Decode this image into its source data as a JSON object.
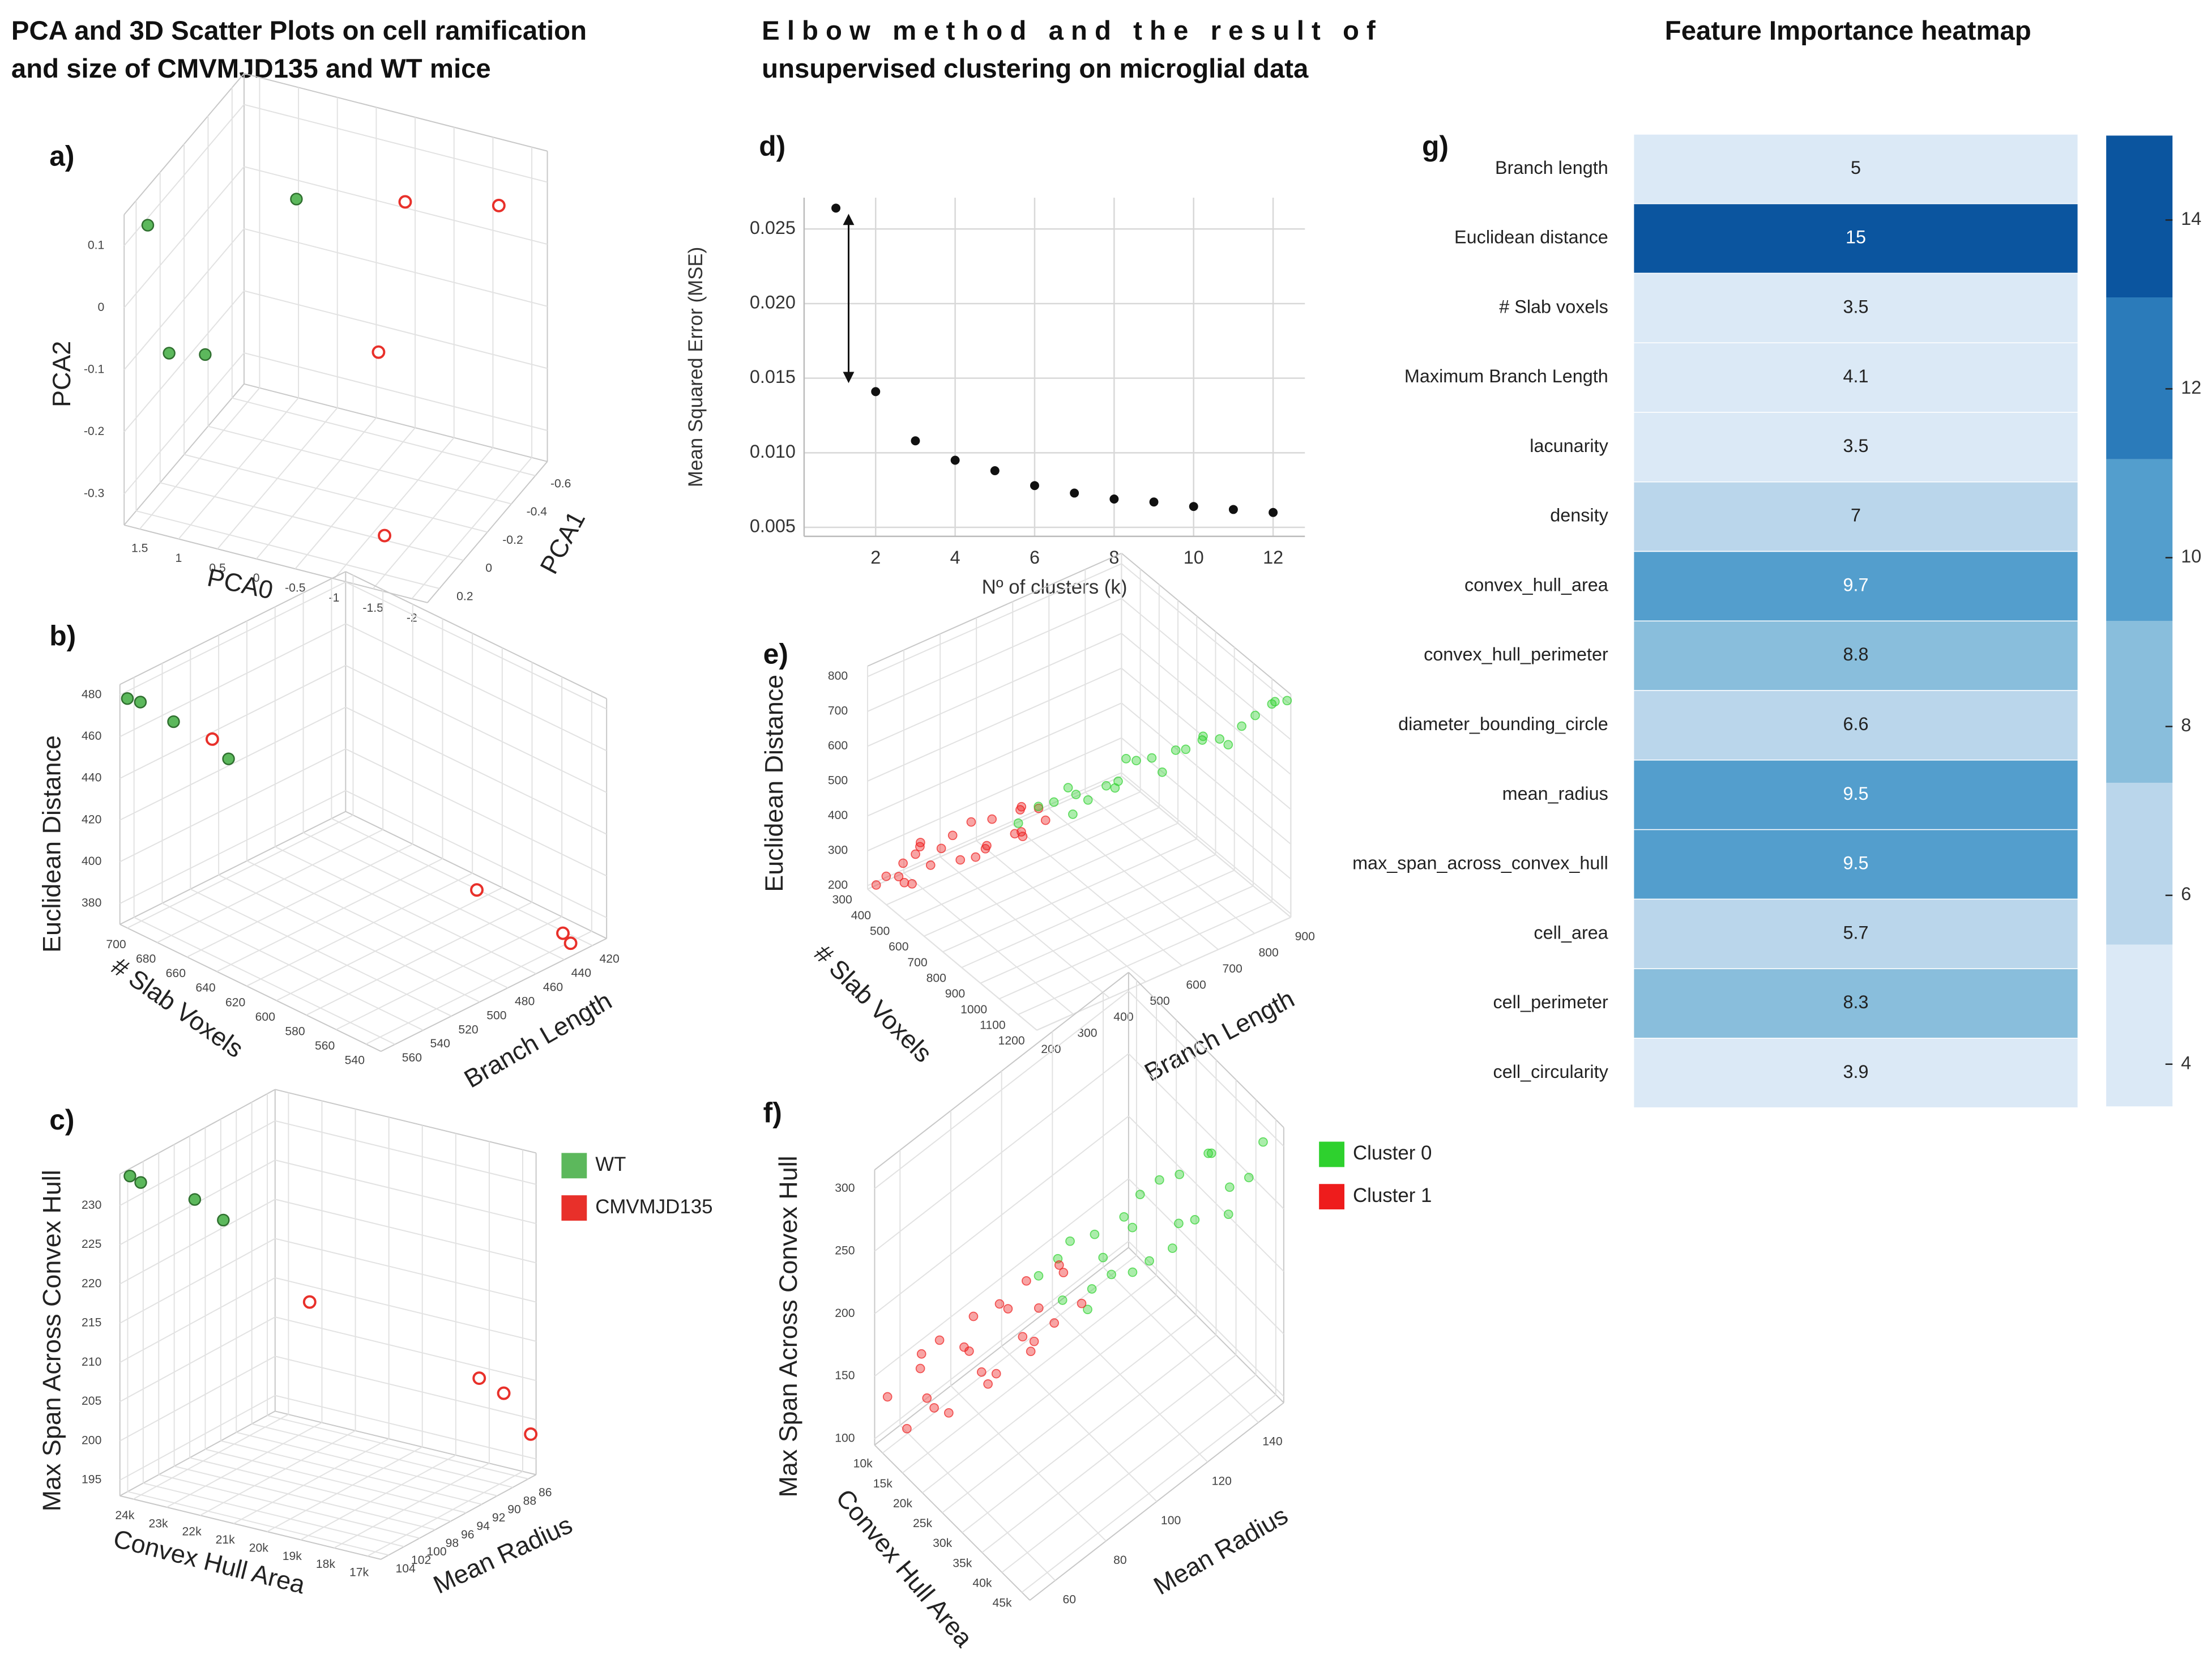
{
  "headers": [
    [
      "PCA and 3D Scatter Plots on cell ramification",
      "and size of CMVMJD135 and WT mice"
    ],
    [
      "Elbow method and the result of",
      "unsupervised clustering on microglial data"
    ],
    [
      "Feature Importance heatmap"
    ]
  ],
  "chart_data": [
    {
      "type": "scatter3d",
      "label": "a)",
      "xlabel": "PCA0",
      "zlabel": "PCA1",
      "ylabel": "PCA2",
      "xlim": [
        1.7,
        -2.2
      ],
      "zlim": [
        0.3,
        -0.7
      ],
      "ylim": [
        -0.35,
        0.15
      ],
      "xticks": [
        1.5,
        1,
        0.5,
        0,
        -0.5,
        -1,
        -1.5,
        -2
      ],
      "zticks": [
        0.2,
        0,
        -0.2,
        -0.4,
        -0.6
      ],
      "yticks": [
        -0.3,
        -0.2,
        -0.1,
        0,
        0.1
      ],
      "series": [
        {
          "color": "#5cb85c",
          "marker": "filled",
          "x": [
            1.55,
            0.41,
            1.43,
            1.12
          ],
          "z": [
            0.2,
            -0.3,
            0.1,
            0
          ],
          "y": [
            0.115,
            0.08,
            -0.11,
            -0.125
          ]
        },
        {
          "color": "#e8302a",
          "marker": "hollow",
          "x": [
            -0.68,
            -1.73,
            -0.8,
            -1.34
          ],
          "z": [
            -0.5,
            -0.6,
            -0.2,
            0.1
          ],
          "y": [
            0.065,
            0.07,
            -0.105,
            -0.315
          ]
        }
      ]
    },
    {
      "type": "scatter3d",
      "label": "b)",
      "xlabel": "# Slab Voxels",
      "zlabel": "Branch Length",
      "ylabel": "Euclidean Distance",
      "xlim": [
        705,
        530
      ],
      "zlim": [
        570,
        410
      ],
      "ylim": [
        370,
        485
      ],
      "xticks": [
        700,
        680,
        660,
        640,
        620,
        600,
        580,
        560,
        540
      ],
      "zticks": [
        560,
        540,
        520,
        500,
        480,
        460,
        440,
        420
      ],
      "yticks": [
        380,
        400,
        420,
        440,
        460,
        480
      ],
      "series": [
        {
          "color": "#5cb85c",
          "marker": "filled",
          "x": [
            700,
            696,
            687,
            670
          ],
          "z": [
            570,
            565,
            551,
            530
          ],
          "y": [
            480,
            478,
            467,
            448
          ]
        },
        {
          "color": "#e8302a",
          "marker": "hollow",
          "x": [
            679,
            600,
            547,
            539
          ],
          "z": [
            532,
            428,
            423,
            426
          ],
          "y": [
            455,
            375,
            371,
            370
          ]
        }
      ]
    },
    {
      "type": "scatter3d",
      "label": "c)",
      "xlabel": "Convex Hull Area",
      "zlabel": "Mean Radius",
      "ylabel": "Max Span Across Convex Hull",
      "xlim": [
        24400,
        16600
      ],
      "zlim": [
        105,
        85
      ],
      "ylim": [
        193,
        234
      ],
      "xticks": [
        {
          "value": 24000,
          "label": "24k"
        },
        {
          "value": 23000,
          "label": "23k"
        },
        {
          "value": 22000,
          "label": "22k"
        },
        {
          "value": 21000,
          "label": "21k"
        },
        {
          "value": 20000,
          "label": "20k"
        },
        {
          "value": 19000,
          "label": "19k"
        },
        {
          "value": 18000,
          "label": "18k"
        },
        {
          "value": 17000,
          "label": "17k"
        }
      ],
      "zticks": [
        104,
        102,
        100,
        98,
        96,
        94,
        92,
        90,
        88,
        86
      ],
      "yticks": [
        195,
        200,
        205,
        210,
        215,
        220,
        225,
        230
      ],
      "legend": "right",
      "series": [
        {
          "name": "WT",
          "color": "#5cb85c",
          "marker": "filled",
          "x": [
            24240,
            24010,
            23230,
            22840
          ],
          "z": [
            104.4,
            104,
            100.4,
            98.4
          ],
          "y": [
            233.6,
            232.8,
            229.5,
            226.2
          ]
        },
        {
          "name": "CMVMJD135",
          "color": "#e8302a",
          "marker": "hollow",
          "x": [
            21280,
            18160,
            17380,
            16760
          ],
          "z": [
            94,
            85.6,
            85.8,
            85
          ],
          "y": [
            215,
            204,
            203,
            198
          ]
        }
      ]
    },
    {
      "type": "scatter",
      "label": "d)",
      "xlabel": "Nº of clusters (k)",
      "ylabel": "Mean Squared Error (MSE)",
      "color": "#111111",
      "grid": true,
      "x": [
        1,
        2,
        3,
        4,
        5,
        6,
        7,
        8,
        9,
        10,
        11,
        12
      ],
      "values": [
        0.0264,
        0.0141,
        0.0108,
        0.0095,
        0.0088,
        0.0078,
        0.0073,
        0.0069,
        0.0067,
        0.0064,
        0.0062,
        0.006
      ],
      "xlim": [
        0.2,
        12.8
      ],
      "ylim": [
        0.0044,
        0.0271
      ],
      "xticks": [
        2,
        4,
        6,
        8,
        10,
        12
      ],
      "yticks": [
        0.005,
        {
          "value": 0.01,
          "label": "0.010"
        },
        0.015,
        {
          "value": 0.02,
          "label": "0.020"
        },
        0.025
      ]
    },
    {
      "type": "scatter3d",
      "label": "e)",
      "xlabel": "# Slab Voxels",
      "zlabel": "Branch Length",
      "ylabel": "Euclidean Distance",
      "xlim": [
        300,
        1200
      ],
      "zlim": [
        200,
        900
      ],
      "ylim": [
        190,
        830
      ],
      "xticks": [
        300,
        400,
        500,
        600,
        700,
        800,
        900,
        1000,
        1100,
        1200
      ],
      "zticks": [
        200,
        300,
        400,
        500,
        600,
        700,
        800,
        900
      ],
      "yticks": [
        200,
        300,
        400,
        500,
        600,
        700,
        800
      ],
      "series": [
        {
          "color": "#ee1c1c",
          "marker": "soft",
          "x": [
            338,
            316,
            394,
            342,
            440,
            368,
            446,
            394,
            492,
            470,
            558,
            486,
            544,
            492,
            610,
            568,
            656,
            584,
            662,
            650,
            708,
            370,
            410,
            560,
            600
          ],
          "z": [
            204,
            243,
            237,
            276,
            250,
            309,
            298,
            297,
            356,
            315,
            364,
            338,
            402,
            386,
            445,
            404,
            443,
            477,
            436,
            490,
            479,
            265,
            275,
            390,
            465
          ],
          "y": [
            217,
            214,
            251,
            248,
            245,
            292,
            279,
            321,
            288,
            330,
            322,
            364,
            331,
            383,
            375,
            417,
            389,
            426,
            408,
            445,
            442,
            210,
            305,
            335,
            430
          ]
        },
        {
          "color": "#2ed12e",
          "marker": "soft",
          "x": [
            654,
            620,
            716,
            702,
            818,
            784,
            880,
            826,
            922,
            918,
            1004,
            980,
            1086,
            1072,
            1138,
            1134,
            1190,
            745,
            720,
            815,
            818,
            960,
            992,
            1114,
            1162
          ],
          "z": [
            432,
            505,
            498,
            566,
            539,
            607,
            590,
            668,
            661,
            729,
            712,
            770,
            763,
            831,
            834,
            882,
            895,
            535,
            535,
            615,
            644,
            670,
            766,
            772,
            876
          ],
          "y": [
            431,
            430,
            489,
            473,
            522,
            516,
            580,
            579,
            633,
            622,
            671,
            660,
            714,
            713,
            772,
            781,
            810,
            450,
            515,
            520,
            592,
            605,
            678,
            706,
            803
          ]
        }
      ]
    },
    {
      "type": "scatter3d",
      "label": "f)",
      "xlabel": "Convex Hull Area",
      "zlabel": "Mean Radius",
      "ylabel": "Max Span Across Convex Hull",
      "xlim": [
        8000,
        47000
      ],
      "zlim": [
        50,
        150
      ],
      "ylim": [
        95,
        315
      ],
      "xticks": [
        {
          "value": 10000,
          "label": "10k"
        },
        {
          "value": 15000,
          "label": "15k"
        },
        {
          "value": 20000,
          "label": "20k"
        },
        {
          "value": 25000,
          "label": "25k"
        },
        {
          "value": 30000,
          "label": "30k"
        },
        {
          "value": 35000,
          "label": "35k"
        },
        {
          "value": 40000,
          "label": "40k"
        },
        {
          "value": 45000,
          "label": "45k"
        }
      ],
      "zticks": [
        60,
        80,
        100,
        120,
        140
      ],
      "yticks": [
        100,
        150,
        200,
        250,
        300
      ],
      "legend": "right",
      "series": [
        {
          "name": "Cluster 0",
          "color": "#2ed12e",
          "marker": "soft",
          "x": [
            25860,
            23680,
            27500,
            25320,
            31140,
            29460,
            34280,
            31100,
            35920,
            33240,
            38060,
            37380,
            41700,
            39520,
            43340,
            45000,
            28340,
            26480,
            32620,
            36260,
            34900,
            42040,
            39680,
            30300,
            31940
          ],
          "z": [
            96,
            90,
            105,
            95,
            107,
            103,
            117,
            112,
            126,
            115,
            129,
            124,
            137,
            132,
            142,
            145,
            102,
            98,
            113,
            123,
            120,
            136,
            133,
            105,
            114
          ],
          "y": [
            195,
            217,
            195,
            228,
            215,
            248,
            220,
            253,
            241,
            273,
            246,
            288,
            271,
            299,
            276,
            305,
            186,
            241,
            212,
            227,
            282,
            252,
            298,
            229,
            244
          ]
        },
        {
          "name": "Cluster 1",
          "color": "#ee1c1c",
          "marker": "soft",
          "x": [
            11000,
            9320,
            15140,
            12460,
            18280,
            14100,
            19420,
            16240,
            22560,
            20880,
            25700,
            22520,
            26840,
            25660,
            13480,
            12120,
            19260,
            17900,
            25540,
            24180,
            15300,
            16440,
            17080,
            22220,
            24360
          ],
          "z": [
            58,
            53,
            68,
            61,
            76,
            66,
            80,
            76,
            90,
            79,
            93,
            87,
            102,
            95,
            62,
            62,
            77,
            87,
            84,
            99,
            62,
            74,
            71,
            86,
            89
          ],
          "y": [
            105,
            133,
            115,
            153,
            145,
            173,
            141,
            183,
            161,
            203,
            181,
            214,
            186,
            224,
            131,
            162,
            137,
            177,
            172,
            207,
            129,
            159,
            169,
            170,
            195
          ]
        }
      ]
    },
    {
      "type": "heatmap",
      "label": "g)",
      "categories": [
        "Branch length",
        "Euclidean distance",
        "# Slab voxels",
        "Maximum Branch Length",
        "lacunarity",
        "density",
        "convex_hull_area",
        "convex_hull_perimeter",
        "diameter_bounding_circle",
        "mean_radius",
        "max_span_across_convex_hull",
        "cell_area",
        "cell_perimeter",
        "cell_circularity"
      ],
      "values": [
        5,
        15,
        3.5,
        4.1,
        3.5,
        7,
        9.7,
        8.8,
        6.6,
        9.5,
        9.5,
        5.7,
        8.3,
        3.9
      ],
      "colors": [
        "#dbe9f6",
        "#bad6eb",
        "#89bedc",
        "#539ecd",
        "#2b7bba",
        "#0b559f"
      ],
      "clim": [
        3.5,
        15
      ],
      "cticks": [
        4,
        6,
        8,
        10,
        12,
        14
      ]
    }
  ]
}
